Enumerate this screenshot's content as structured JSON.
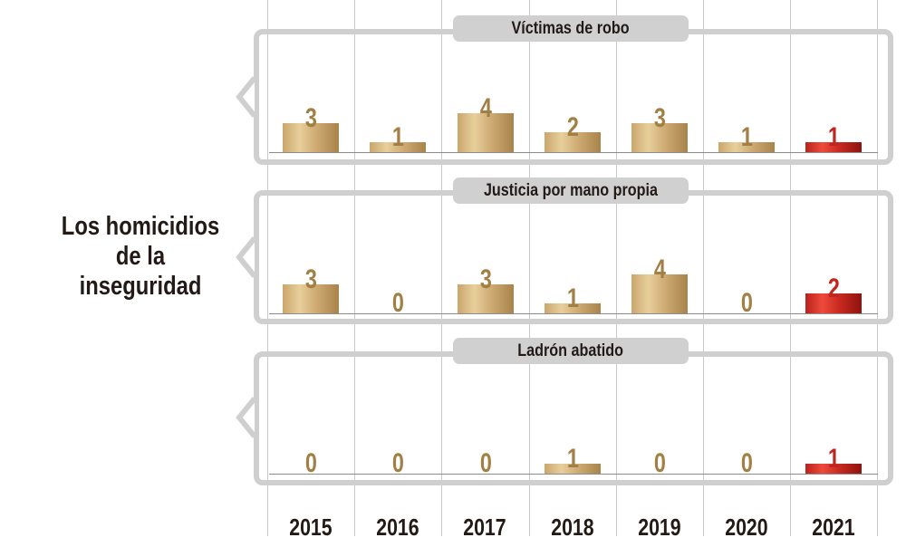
{
  "title": "Los homicidios de la inseguridad",
  "title_lines": [
    "Los homicidios",
    "de la",
    "inseguridad"
  ],
  "colors": {
    "bar_default": "#c9a66b",
    "bar_highlight": "#c92a20",
    "value_default": "#a27f45",
    "value_highlight": "#c0261e",
    "panel_border": "#cfcfcf",
    "pill_bg": "#d0d0d0",
    "text_dark": "#231a15"
  },
  "years": [
    "2015",
    "2016",
    "2017",
    "2018",
    "2019",
    "2020",
    "2021"
  ],
  "panels": [
    {
      "label": "Víctimas de robo",
      "values": [
        3,
        1,
        4,
        2,
        3,
        1,
        1
      ]
    },
    {
      "label": "Justicia por mano propia",
      "values": [
        3,
        0,
        3,
        1,
        4,
        0,
        2
      ]
    },
    {
      "label": "Ladrón abatido",
      "values": [
        0,
        0,
        0,
        1,
        0,
        0,
        1
      ]
    }
  ],
  "chart_data": {
    "type": "bar",
    "title": "Los homicidios de la inseguridad",
    "categories": [
      "2015",
      "2016",
      "2017",
      "2018",
      "2019",
      "2020",
      "2021"
    ],
    "series": [
      {
        "name": "Víctimas de robo",
        "values": [
          3,
          1,
          4,
          2,
          3,
          1,
          1
        ]
      },
      {
        "name": "Justicia por mano propia",
        "values": [
          3,
          0,
          3,
          1,
          4,
          0,
          2
        ]
      },
      {
        "name": "Ladrón abatido",
        "values": [
          0,
          0,
          0,
          1,
          0,
          0,
          1
        ]
      }
    ],
    "highlight_category": "2021",
    "layout": "small-multiples, one panel per series, stacked vertically",
    "xlabel": "",
    "ylabel": "",
    "ylim": [
      0,
      4
    ],
    "grid": "vertical column separators",
    "legend": "none (series names shown as panel title pills)",
    "data_labels": true
  }
}
